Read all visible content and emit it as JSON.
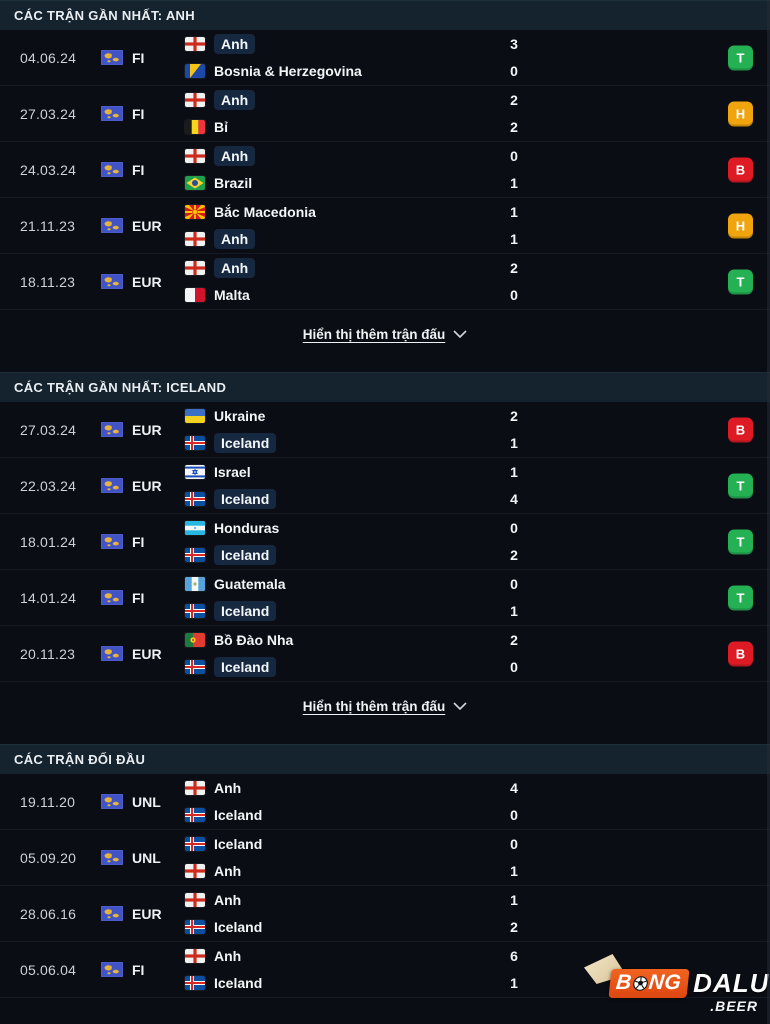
{
  "colors": {
    "win": "#24b053",
    "draw": "#f0a40d",
    "loss": "#de1b24",
    "chip_bg": "#16283f",
    "header_bg": "#15232e",
    "brand_orange": "#e8551c"
  },
  "sections": [
    {
      "id": "recent-anh",
      "title": "CÁC TRẬN GẦN NHẤT: ANH",
      "show_more": "Hiển thị thêm trận đấu",
      "matches": [
        {
          "date": "04.06.24",
          "comp": "FI",
          "home": {
            "name": "Anh",
            "flag": "england",
            "highlight": true
          },
          "away": {
            "name": "Bosnia & Herzegovina",
            "flag": "bosnia",
            "highlight": false
          },
          "home_score": "3",
          "away_score": "0",
          "result": "T"
        },
        {
          "date": "27.03.24",
          "comp": "FI",
          "home": {
            "name": "Anh",
            "flag": "england",
            "highlight": true
          },
          "away": {
            "name": "Bỉ",
            "flag": "belgium",
            "highlight": false
          },
          "home_score": "2",
          "away_score": "2",
          "result": "H"
        },
        {
          "date": "24.03.24",
          "comp": "FI",
          "home": {
            "name": "Anh",
            "flag": "england",
            "highlight": true
          },
          "away": {
            "name": "Brazil",
            "flag": "brazil",
            "highlight": false
          },
          "home_score": "0",
          "away_score": "1",
          "result": "B"
        },
        {
          "date": "21.11.23",
          "comp": "EUR",
          "home": {
            "name": "Bắc Macedonia",
            "flag": "macedonia",
            "highlight": false
          },
          "away": {
            "name": "Anh",
            "flag": "england",
            "highlight": true
          },
          "home_score": "1",
          "away_score": "1",
          "result": "H"
        },
        {
          "date": "18.11.23",
          "comp": "EUR",
          "home": {
            "name": "Anh",
            "flag": "england",
            "highlight": true
          },
          "away": {
            "name": "Malta",
            "flag": "malta",
            "highlight": false
          },
          "home_score": "2",
          "away_score": "0",
          "result": "T"
        }
      ]
    },
    {
      "id": "recent-iceland",
      "title": "CÁC TRẬN GẦN NHẤT: ICELAND",
      "show_more": "Hiển thị thêm trận đấu",
      "matches": [
        {
          "date": "27.03.24",
          "comp": "EUR",
          "home": {
            "name": "Ukraine",
            "flag": "ukraine",
            "highlight": false
          },
          "away": {
            "name": "Iceland",
            "flag": "iceland",
            "highlight": true
          },
          "home_score": "2",
          "away_score": "1",
          "result": "B"
        },
        {
          "date": "22.03.24",
          "comp": "EUR",
          "home": {
            "name": "Israel",
            "flag": "israel",
            "highlight": false
          },
          "away": {
            "name": "Iceland",
            "flag": "iceland",
            "highlight": true
          },
          "home_score": "1",
          "away_score": "4",
          "result": "T"
        },
        {
          "date": "18.01.24",
          "comp": "FI",
          "home": {
            "name": "Honduras",
            "flag": "honduras",
            "highlight": false
          },
          "away": {
            "name": "Iceland",
            "flag": "iceland",
            "highlight": true
          },
          "home_score": "0",
          "away_score": "2",
          "result": "T"
        },
        {
          "date": "14.01.24",
          "comp": "FI",
          "home": {
            "name": "Guatemala",
            "flag": "guatemala",
            "highlight": false
          },
          "away": {
            "name": "Iceland",
            "flag": "iceland",
            "highlight": true
          },
          "home_score": "0",
          "away_score": "1",
          "result": "T"
        },
        {
          "date": "20.11.23",
          "comp": "EUR",
          "home": {
            "name": "Bồ Đào Nha",
            "flag": "portugal",
            "highlight": false
          },
          "away": {
            "name": "Iceland",
            "flag": "iceland",
            "highlight": true
          },
          "home_score": "2",
          "away_score": "0",
          "result": "B"
        }
      ]
    },
    {
      "id": "head-to-head",
      "title": "CÁC TRẬN ĐỐI ĐẦU",
      "show_more": null,
      "matches": [
        {
          "date": "19.11.20",
          "comp": "UNL",
          "home": {
            "name": "Anh",
            "flag": "england",
            "highlight": false
          },
          "away": {
            "name": "Iceland",
            "flag": "iceland",
            "highlight": false
          },
          "home_score": "4",
          "away_score": "0",
          "result": null
        },
        {
          "date": "05.09.20",
          "comp": "UNL",
          "home": {
            "name": "Iceland",
            "flag": "iceland",
            "highlight": false
          },
          "away": {
            "name": "Anh",
            "flag": "england",
            "highlight": false
          },
          "home_score": "0",
          "away_score": "1",
          "result": null
        },
        {
          "date": "28.06.16",
          "comp": "EUR",
          "home": {
            "name": "Anh",
            "flag": "england",
            "highlight": false
          },
          "away": {
            "name": "Iceland",
            "flag": "iceland",
            "highlight": false
          },
          "home_score": "1",
          "away_score": "2",
          "result": null
        },
        {
          "date": "05.06.04",
          "comp": "FI",
          "home": {
            "name": "Anh",
            "flag": "england",
            "highlight": false
          },
          "away": {
            "name": "Iceland",
            "flag": "iceland",
            "highlight": false
          },
          "home_score": "6",
          "away_score": "1",
          "result": null
        }
      ]
    }
  ],
  "watermark": {
    "brand_part1": "B",
    "brand_part2": "NG",
    "brand_part3": "DALU",
    "domain": ".BEER"
  }
}
